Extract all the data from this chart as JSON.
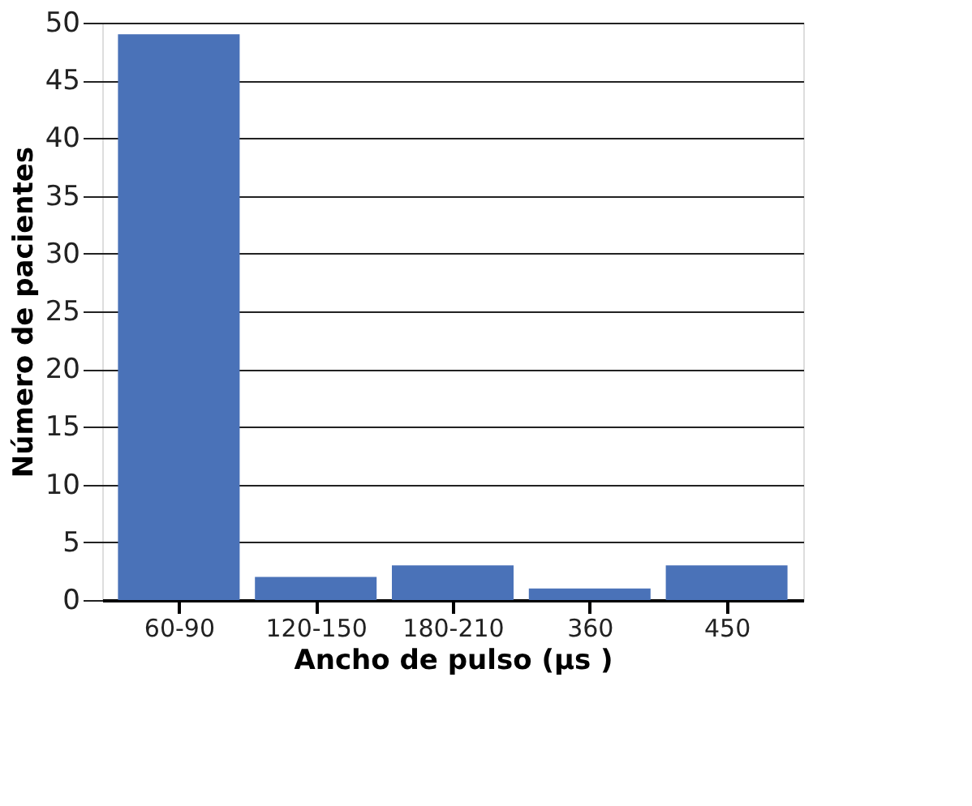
{
  "chart_data": {
    "type": "bar",
    "xlabel": "Ancho de pulso (µs )",
    "ylabel": "Número de pacientes",
    "categories": [
      "60-90",
      "120-150",
      "180-210",
      "360",
      "450"
    ],
    "values": [
      49,
      2,
      3,
      1,
      3
    ],
    "color": "#4a72b8",
    "ylim": [
      0,
      50
    ],
    "yticks": [
      0,
      5,
      10,
      15,
      20,
      25,
      30,
      35,
      40,
      45,
      50
    ],
    "grid": "y"
  }
}
